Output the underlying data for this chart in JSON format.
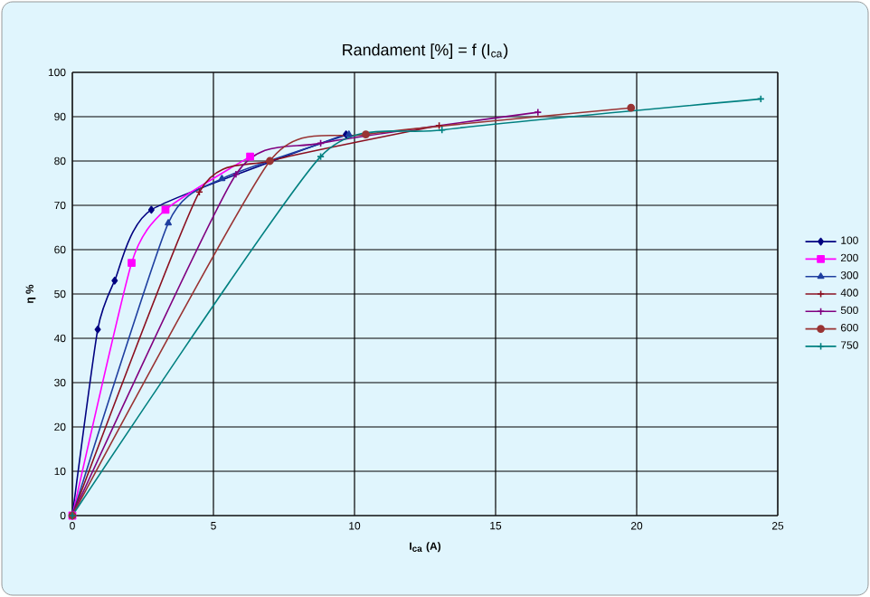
{
  "chart_data": {
    "type": "line",
    "title": "Randament [%] = f (I$_{ca}$)",
    "xlabel": "I$_{ca}$ (A)",
    "ylabel": "η %",
    "xlim": [
      0,
      25
    ],
    "xticks": [
      0,
      5,
      10,
      15,
      20,
      25
    ],
    "ylim": [
      0,
      100
    ],
    "yticks": [
      0,
      10,
      20,
      30,
      40,
      50,
      60,
      70,
      80,
      90,
      100
    ],
    "grid": true,
    "legend": "right",
    "line_style": "solid",
    "series": [
      {
        "name": "100",
        "color": "#000080",
        "marker": "diamond",
        "x": [
          0,
          0.9,
          1.5,
          2.8,
          9.7
        ],
        "values": [
          0,
          42,
          53,
          69,
          86
        ]
      },
      {
        "name": "200",
        "color": "#ff00ff",
        "marker": "square",
        "x": [
          0,
          2.1,
          3.3,
          6.3
        ],
        "values": [
          0,
          57,
          69,
          81
        ]
      },
      {
        "name": "300",
        "color": "#1f3fa0",
        "marker": "triangle",
        "x": [
          0,
          3.4,
          5.3,
          9.8
        ],
        "values": [
          0,
          66,
          76,
          86
        ]
      },
      {
        "name": "400",
        "color": "#8b1020",
        "marker": "cross",
        "x": [
          0,
          4.5,
          7,
          13
        ],
        "values": [
          0,
          73,
          80,
          88
        ]
      },
      {
        "name": "500",
        "color": "#800080",
        "marker": "cross",
        "x": [
          0,
          5.8,
          8.8,
          16.5
        ],
        "values": [
          0,
          77,
          84,
          91
        ]
      },
      {
        "name": "600",
        "color": "#993333",
        "marker": "circle",
        "x": [
          0,
          7,
          10.4,
          19.8
        ],
        "values": [
          0,
          80,
          86,
          92
        ]
      },
      {
        "name": "750",
        "color": "#008080",
        "marker": "cross",
        "x": [
          0,
          8.8,
          13.1,
          24.4
        ],
        "values": [
          0,
          81,
          87,
          94
        ]
      }
    ]
  }
}
